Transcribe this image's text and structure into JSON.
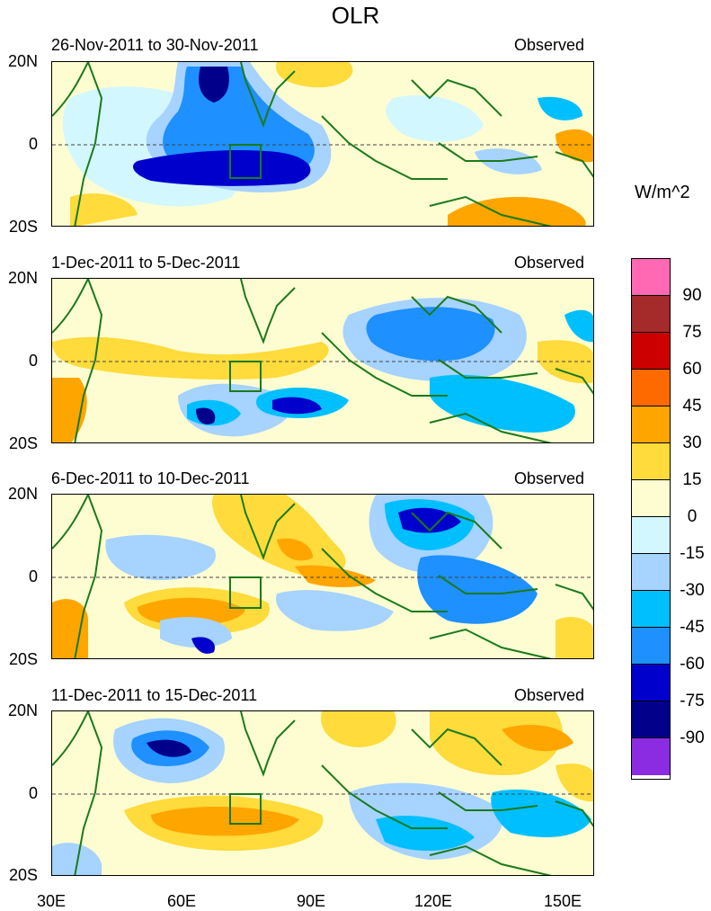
{
  "title": "OLR",
  "units_label": "W/m^2",
  "panels": [
    {
      "date_range": "26-Nov-2011 to 30-Nov-2011",
      "label": "Observed"
    },
    {
      "date_range": "1-Dec-2011 to 5-Dec-2011",
      "label": "Observed"
    },
    {
      "date_range": "6-Dec-2011 to 10-Dec-2011",
      "label": "Observed"
    },
    {
      "date_range": "11-Dec-2011 to 15-Dec-2011",
      "label": "Observed"
    }
  ],
  "lat_labels": [
    "20N",
    "0",
    "20S"
  ],
  "lon_labels": [
    "30E",
    "60E",
    "90E",
    "120E",
    "150E"
  ],
  "colorbar": {
    "labels": [
      "90",
      "75",
      "60",
      "45",
      "30",
      "15",
      "0",
      "-15",
      "-30",
      "-45",
      "-60",
      "-75",
      "-90"
    ],
    "colors": [
      "#ff69b4",
      "#a52a2a",
      "#cd0000",
      "#ff6a00",
      "#ffa500",
      "#ffdb3b",
      "#fefdd2",
      "#d2f7ff",
      "#a6d3ff",
      "#00bfff",
      "#1e90ff",
      "#0000cd",
      "#00008b",
      "#8b2be2"
    ]
  }
}
